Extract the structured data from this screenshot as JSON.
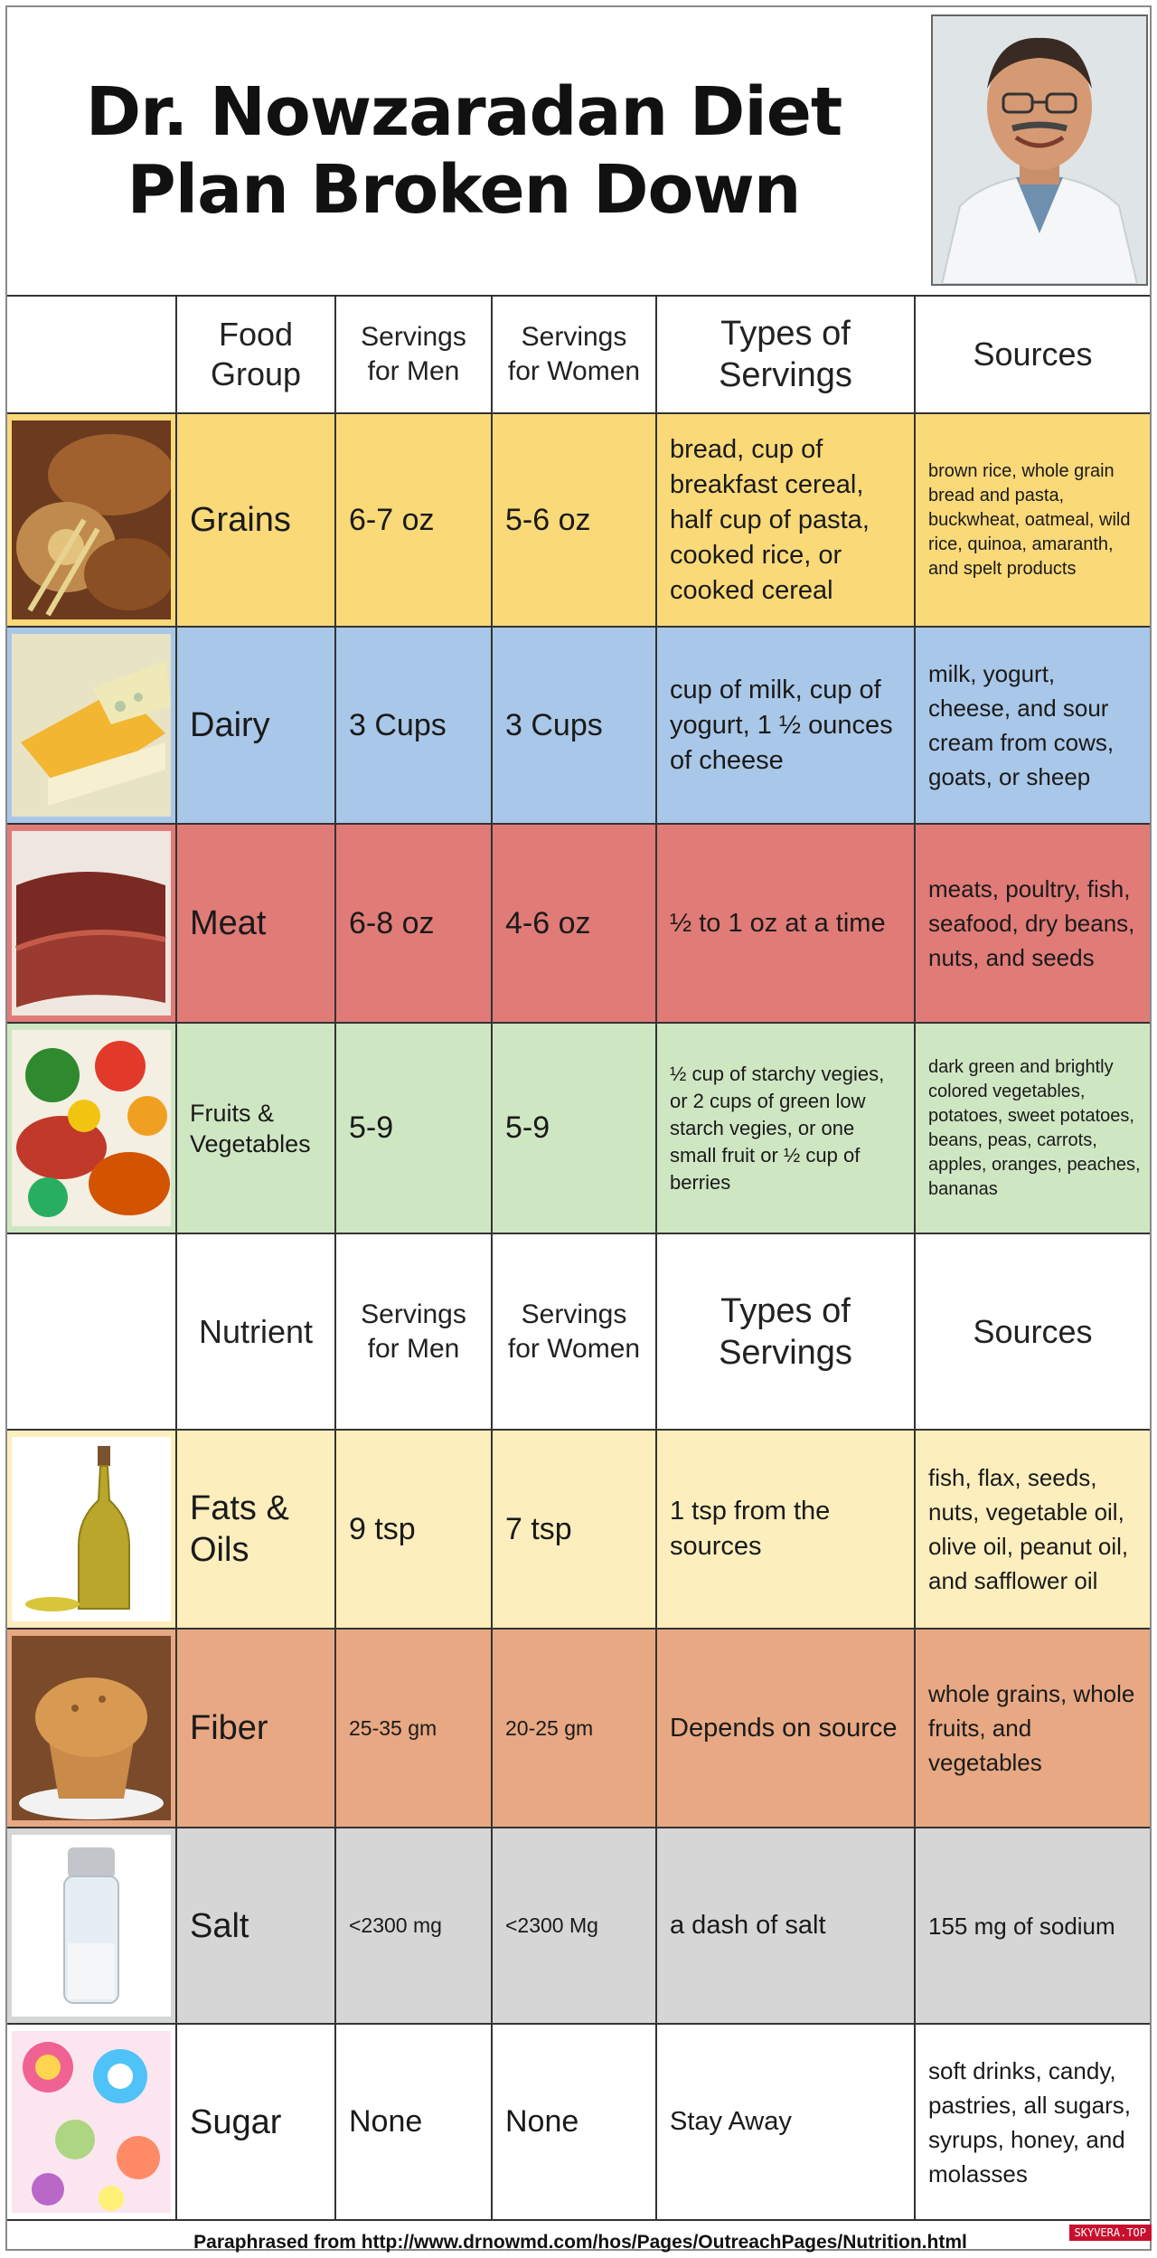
{
  "title": {
    "line1": "Dr. Nowzaradan Diet",
    "line2": "Plan Broken Down"
  },
  "colors": {
    "grains": "#f9d978",
    "dairy": "#a9c7e8",
    "meat": "#e07b78",
    "fruits": "#cfe6c3",
    "fats": "#fdeebd",
    "fiber": "#e7a883",
    "salt": "#d6d6d6",
    "sugar": "#ffffff"
  },
  "food_header": {
    "col1": "Food Group",
    "col2": "Servings for Men",
    "col3": "Servings for Women",
    "col4": "Types of Servings",
    "col5": "Sources"
  },
  "food_rows": [
    {
      "name": "Grains",
      "men": "6-7 oz",
      "women": "5-6 oz",
      "types": "bread, cup of breakfast cereal, half cup of pasta, cooked rice, or cooked cereal",
      "sources": "brown rice, whole grain bread and pasta, buckwheat, oatmeal, wild rice, quinoa, amaranth, and spelt products",
      "image": "bread-grains-image"
    },
    {
      "name": "Dairy",
      "men": "3 Cups",
      "women": "3 Cups",
      "types": "cup of milk, cup of yogurt, 1 ½ ounces of cheese",
      "sources": "milk, yogurt, cheese, and sour cream from cows, goats, or sheep",
      "image": "cheese-image"
    },
    {
      "name": "Meat",
      "men": "6-8 oz",
      "women": "4-6 oz",
      "types": "½ to 1 oz at a time",
      "sources": "meats, poultry, fish, seafood, dry beans, nuts, and seeds",
      "image": "steak-image"
    },
    {
      "name": "Fruits & Vegetables",
      "men": "5-9",
      "women": "5-9",
      "types": "½ cup of starchy vegies, or 2 cups of green low starch vegies, or one small fruit or ½ cup of berries",
      "sources": "dark green and brightly colored vegetables, potatoes, sweet potatoes, beans, peas, carrots, apples, oranges, peaches, bananas",
      "image": "vegetables-image"
    }
  ],
  "nutrient_header": {
    "col1": "Nutrient",
    "col2": "Servings for Men",
    "col3": "Servings for Women",
    "col4": "Types of Servings",
    "col5": "Sources"
  },
  "nutrient_rows": [
    {
      "name": "Fats & Oils",
      "men": "9 tsp",
      "women": "7 tsp",
      "types": "1 tsp from the sources",
      "sources": "fish, flax, seeds, nuts, vegetable oil, olive oil, peanut oil, and safflower oil",
      "image": "oil-bottle-image"
    },
    {
      "name": "Fiber",
      "men": "25-35 gm",
      "women": "20-25 gm",
      "types": "Depends on source",
      "sources": "whole grains, whole fruits, and vegetables",
      "image": "muffin-image"
    },
    {
      "name": "Salt",
      "men": "<2300 mg",
      "women": "<2300 Mg",
      "types": "a dash of salt",
      "sources": "155 mg of sodium",
      "image": "salt-shaker-image"
    },
    {
      "name": "Sugar",
      "men": "None",
      "women": "None",
      "types": "Stay Away",
      "sources": "soft drinks, candy, pastries, all sugars, syrups, honey, and molasses",
      "image": "candy-image"
    }
  ],
  "footer": "Paraphrased from http://www.drnowmd.com/hos/Pages/OutreachPages/Nutrition.html",
  "watermark": "SKYVERA.TOP"
}
